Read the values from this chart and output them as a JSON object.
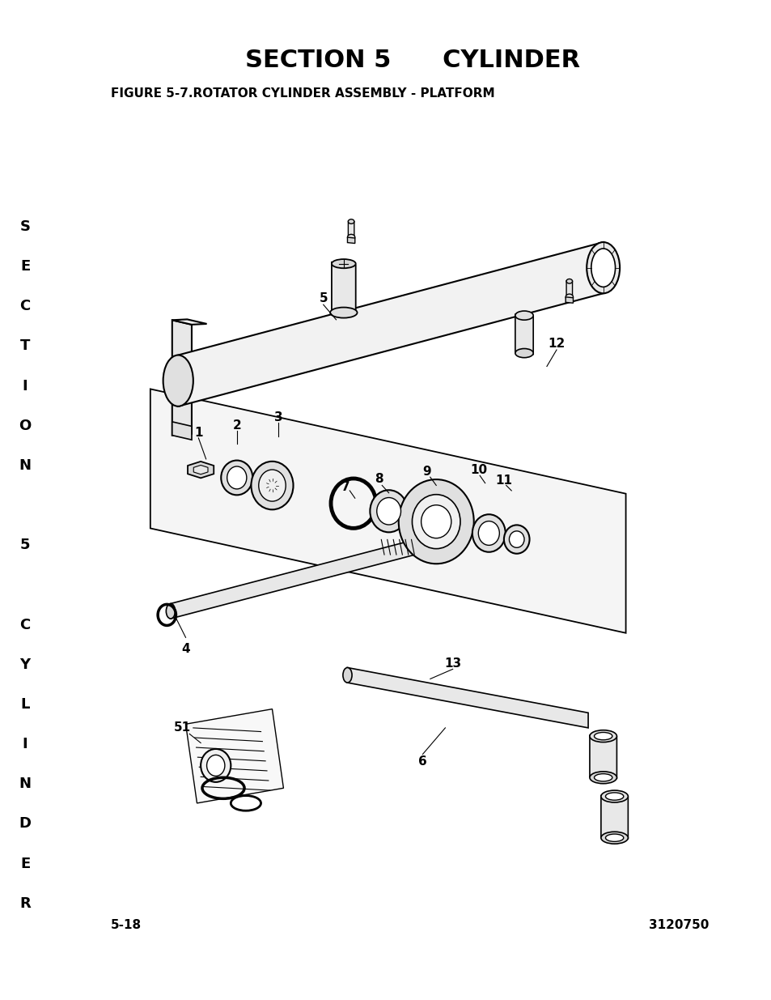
{
  "title": "SECTION 5      CYLINDER",
  "figure_title": "FIGURE 5-7.ROTATOR CYLINDER ASSEMBLY - PLATFORM",
  "page_num": "5-18",
  "part_num": "3120750",
  "sidebar_bg": "#cccccc",
  "bg_color": "#ffffff",
  "title_fontsize": 22,
  "figure_title_fontsize": 11,
  "footer_fontsize": 11,
  "sidebar_fontsize": 14
}
